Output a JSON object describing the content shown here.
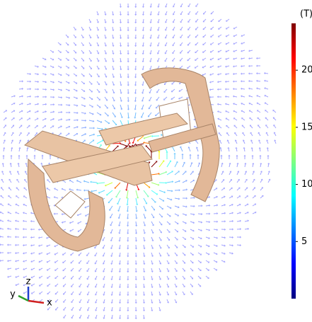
{
  "colorbar": {
    "unit": "(T)",
    "range": [
      0,
      24.1
    ],
    "ticks": [
      5,
      10,
      15,
      20
    ]
  },
  "axes_triad": {
    "z": "z",
    "y": "y",
    "x": "x"
  }
}
